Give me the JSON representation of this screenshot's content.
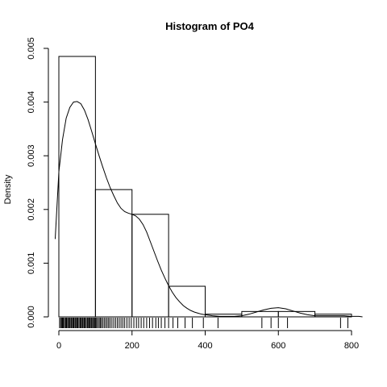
{
  "chart_data": {
    "type": "histogram",
    "title": "Histogram of  PO4",
    "xlabel": "",
    "ylabel": "Density",
    "xlim": [
      -10,
      830
    ],
    "ylim": [
      0,
      0.005
    ],
    "x_ticks": [
      0,
      200,
      400,
      600,
      800
    ],
    "x_tick_labels": [
      "0",
      "200",
      "400",
      "600",
      "800"
    ],
    "y_ticks": [
      0,
      0.001,
      0.002,
      0.003,
      0.004,
      0.005
    ],
    "y_tick_labels": [
      "0.000",
      "0.001",
      "0.002",
      "0.003",
      "0.004",
      "0.005"
    ],
    "bins": [
      {
        "start": 0,
        "end": 100,
        "density": 0.00485
      },
      {
        "start": 100,
        "end": 200,
        "density": 0.00237
      },
      {
        "start": 200,
        "end": 300,
        "density": 0.00191
      },
      {
        "start": 300,
        "end": 400,
        "density": 0.00057
      },
      {
        "start": 400,
        "end": 500,
        "density": 5e-05
      },
      {
        "start": 500,
        "end": 600,
        "density": 0.0001
      },
      {
        "start": 600,
        "end": 700,
        "density": 0.0001
      },
      {
        "start": 700,
        "end": 800,
        "density": 5e-05
      }
    ],
    "density_curve": {
      "x": [
        -10,
        0,
        10,
        20,
        30,
        40,
        50,
        60,
        70,
        80,
        90,
        100,
        110,
        120,
        130,
        140,
        150,
        160,
        170,
        180,
        190,
        200,
        210,
        220,
        230,
        240,
        250,
        260,
        270,
        280,
        290,
        300,
        310,
        320,
        330,
        340,
        350,
        360,
        370,
        380,
        390,
        400,
        420,
        440,
        460,
        480,
        500,
        520,
        540,
        560,
        580,
        600,
        620,
        640,
        660,
        680,
        700,
        720,
        740,
        760,
        780,
        800,
        820,
        830
      ],
      "y": [
        0.00145,
        0.0027,
        0.0033,
        0.0037,
        0.0039,
        0.004,
        0.00401,
        0.00397,
        0.00385,
        0.00367,
        0.00345,
        0.00322,
        0.003,
        0.00279,
        0.00259,
        0.00241,
        0.00226,
        0.00212,
        0.00202,
        0.00196,
        0.00193,
        0.00191,
        0.00188,
        0.00182,
        0.00172,
        0.00158,
        0.0014,
        0.00122,
        0.00104,
        0.00087,
        0.00072,
        0.00058,
        0.00046,
        0.00036,
        0.00028,
        0.00021,
        0.00016,
        0.00012,
        9e-05,
        7e-05,
        5e-05,
        4e-05,
        2e-05,
        1e-05,
        1e-05,
        1e-05,
        2e-05,
        5e-05,
        9e-05,
        0.00013,
        0.00016,
        0.00017,
        0.00015,
        0.00011,
        7e-05,
        4e-05,
        2e-05,
        2e-05,
        2e-05,
        2e-05,
        2e-05,
        1e-05,
        1e-05,
        0.0
      ]
    },
    "rug": [
      2,
      5,
      8,
      10,
      12,
      15,
      18,
      20,
      22,
      25,
      28,
      30,
      33,
      35,
      38,
      40,
      42,
      45,
      48,
      50,
      52,
      55,
      58,
      60,
      62,
      65,
      68,
      70,
      72,
      75,
      78,
      80,
      83,
      85,
      88,
      90,
      93,
      95,
      98,
      100,
      103,
      106,
      110,
      113,
      116,
      120,
      124,
      128,
      132,
      136,
      140,
      145,
      150,
      155,
      160,
      165,
      170,
      175,
      180,
      186,
      192,
      198,
      205,
      212,
      218,
      225,
      232,
      240,
      248,
      256,
      265,
      272,
      280,
      290,
      300,
      312,
      325,
      345,
      365,
      395,
      435,
      555,
      580,
      600,
      625,
      770,
      790
    ],
    "grid": false,
    "legend": "none"
  }
}
